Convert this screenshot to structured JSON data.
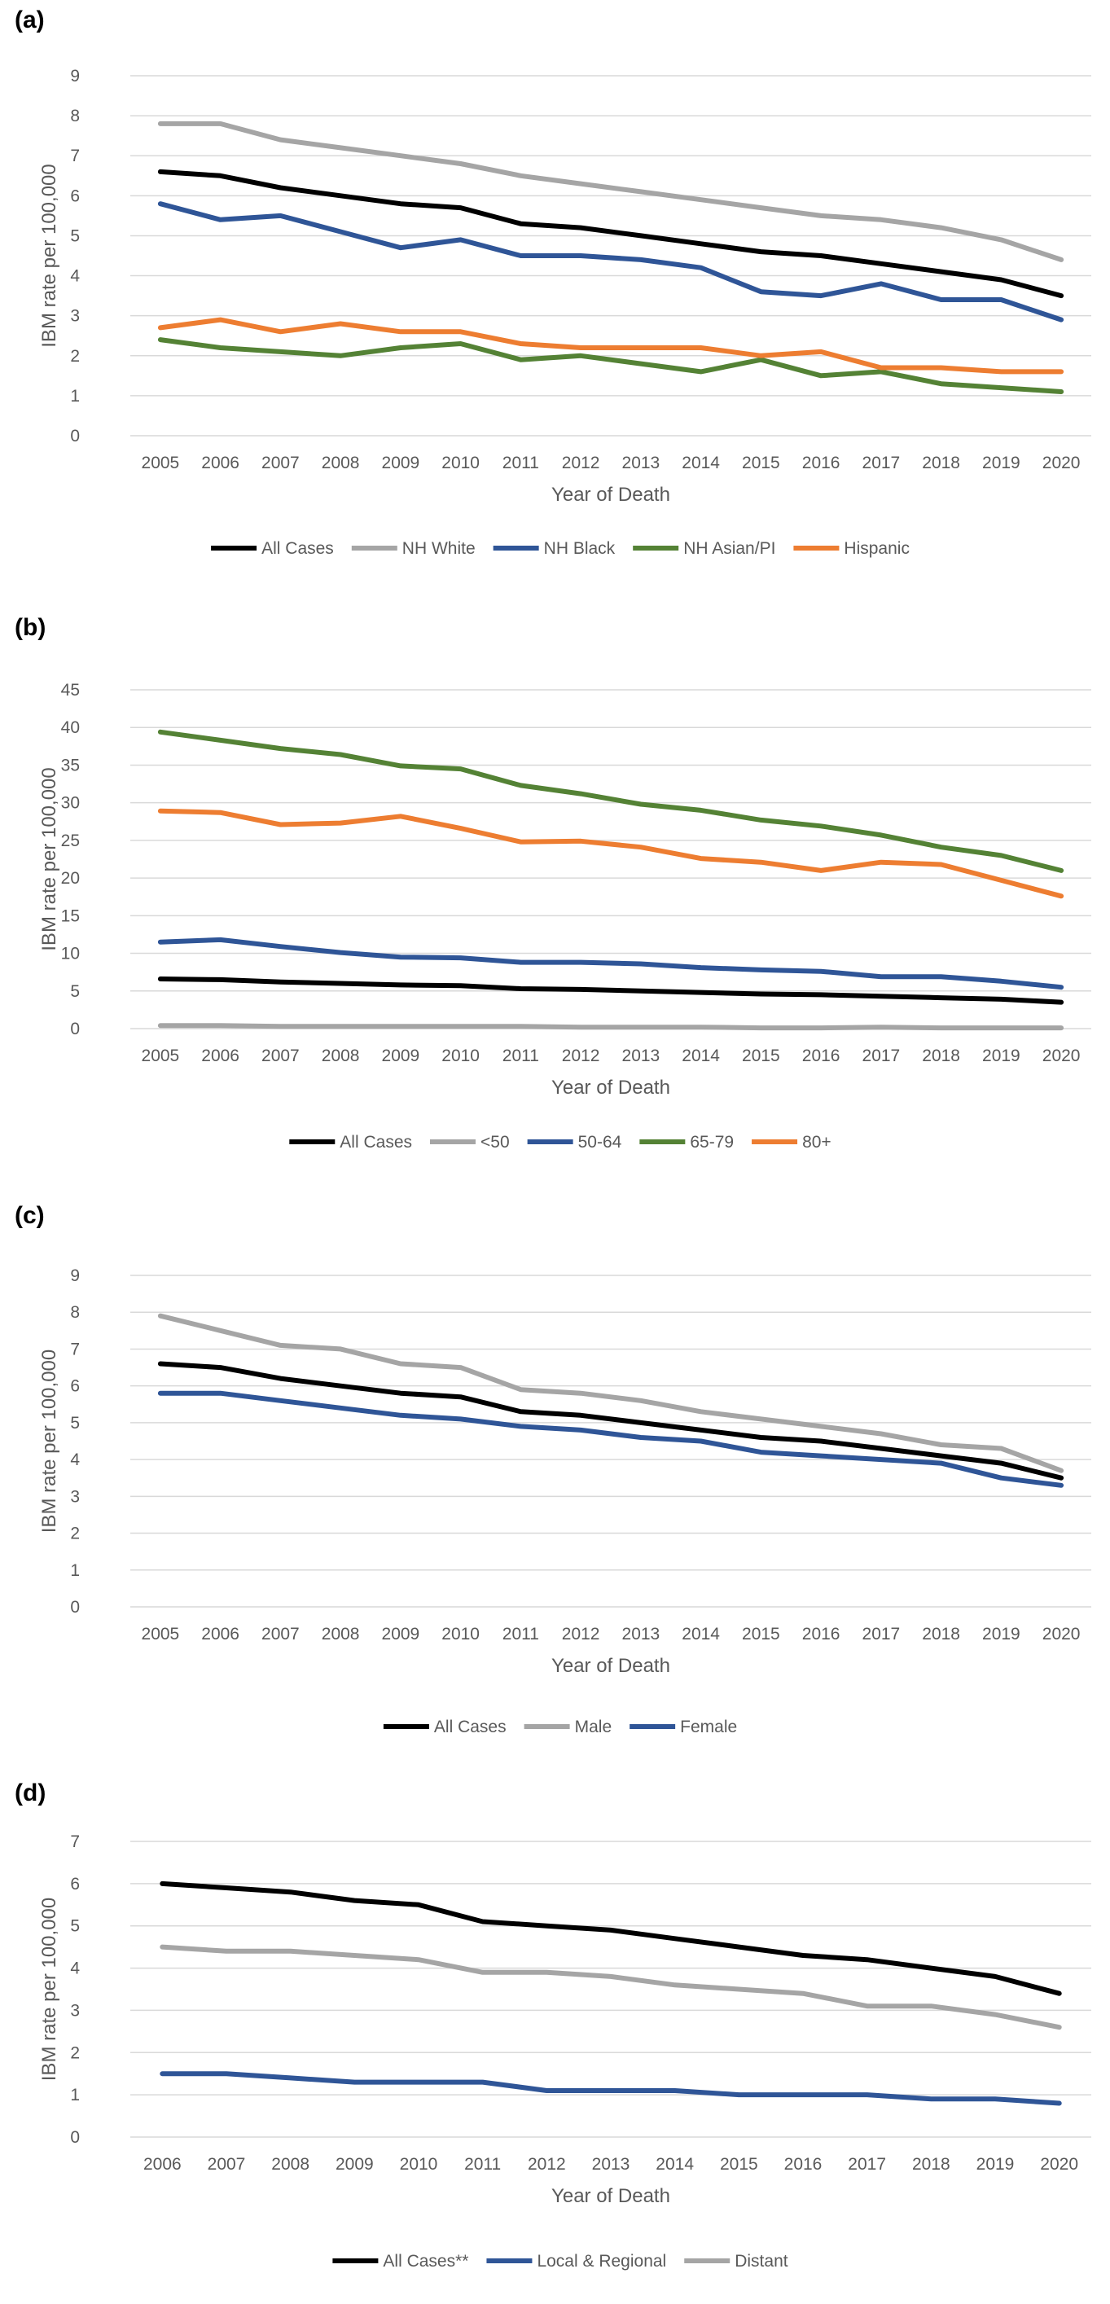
{
  "chart_data": [
    {
      "panel_label": "(a)",
      "type": "line",
      "x": [
        "2005",
        "2006",
        "2007",
        "2008",
        "2009",
        "2010",
        "2011",
        "2012",
        "2013",
        "2014",
        "2015",
        "2016",
        "2017",
        "2018",
        "2019",
        "2020"
      ],
      "xlabel": "Year of Death",
      "ylabel": "IBM rate per 100,000",
      "ylim": [
        0,
        9
      ],
      "yticks": [
        0,
        1,
        2,
        3,
        4,
        5,
        6,
        7,
        8,
        9
      ],
      "grid": true,
      "legend": "bottom",
      "series": [
        {
          "name": "All Cases",
          "color": "#000000",
          "values": [
            6.6,
            6.5,
            6.2,
            6.0,
            5.8,
            5.7,
            5.3,
            5.2,
            5.0,
            4.8,
            4.6,
            4.5,
            4.3,
            4.1,
            3.9,
            3.5
          ]
        },
        {
          "name": "NH White",
          "color": "#a5a5a5",
          "values": [
            7.8,
            7.8,
            7.4,
            7.2,
            7.0,
            6.8,
            6.5,
            6.3,
            6.1,
            5.9,
            5.7,
            5.5,
            5.4,
            5.2,
            4.9,
            4.4
          ]
        },
        {
          "name": "NH Black",
          "color": "#2f5597",
          "values": [
            5.8,
            5.4,
            5.5,
            5.1,
            4.7,
            4.9,
            4.5,
            4.5,
            4.4,
            4.2,
            3.6,
            3.5,
            3.8,
            3.4,
            3.4,
            2.9
          ]
        },
        {
          "name": "NH Asian/PI",
          "color": "#548235",
          "values": [
            2.4,
            2.2,
            2.1,
            2.0,
            2.2,
            2.3,
            1.9,
            2.0,
            1.8,
            1.6,
            1.9,
            1.5,
            1.6,
            1.3,
            1.2,
            1.1
          ]
        },
        {
          "name": "Hispanic",
          "color": "#ed7d31",
          "values": [
            2.7,
            2.9,
            2.6,
            2.8,
            2.6,
            2.6,
            2.3,
            2.2,
            2.2,
            2.2,
            2.0,
            2.1,
            1.7,
            1.7,
            1.6,
            1.6
          ]
        }
      ]
    },
    {
      "panel_label": "(b)",
      "type": "line",
      "x": [
        "2005",
        "2006",
        "2007",
        "2008",
        "2009",
        "2010",
        "2011",
        "2012",
        "2013",
        "2014",
        "2015",
        "2016",
        "2017",
        "2018",
        "2019",
        "2020"
      ],
      "xlabel": "Year of Death",
      "ylabel": "IBM rate per 100,000",
      "ylim": [
        0,
        45
      ],
      "yticks": [
        0,
        5,
        10,
        15,
        20,
        25,
        30,
        35,
        40,
        45
      ],
      "grid": true,
      "legend": "bottom",
      "series": [
        {
          "name": "All Cases",
          "color": "#000000",
          "values": [
            6.6,
            6.5,
            6.2,
            6.0,
            5.8,
            5.7,
            5.3,
            5.2,
            5.0,
            4.8,
            4.6,
            4.5,
            4.3,
            4.1,
            3.9,
            3.5
          ]
        },
        {
          "name": "<50",
          "color": "#a5a5a5",
          "values": [
            0.4,
            0.4,
            0.3,
            0.3,
            0.3,
            0.3,
            0.3,
            0.2,
            0.2,
            0.2,
            0.1,
            0.1,
            0.2,
            0.1,
            0.1,
            0.1
          ]
        },
        {
          "name": "50-64",
          "color": "#2f5597",
          "values": [
            11.5,
            11.8,
            10.9,
            10.1,
            9.5,
            9.4,
            8.8,
            8.8,
            8.6,
            8.1,
            7.8,
            7.6,
            6.9,
            6.9,
            6.3,
            5.5
          ]
        },
        {
          "name": "65-79",
          "color": "#548235",
          "values": [
            39.4,
            38.3,
            37.2,
            36.4,
            34.9,
            34.5,
            32.3,
            31.2,
            29.8,
            29.0,
            27.7,
            26.9,
            25.7,
            24.1,
            23.0,
            21.0
          ]
        },
        {
          "name": "80+",
          "color": "#ed7d31",
          "values": [
            28.9,
            28.7,
            27.1,
            27.3,
            28.2,
            26.6,
            24.8,
            24.9,
            24.1,
            22.6,
            22.1,
            21.0,
            22.1,
            21.8,
            19.7,
            17.6
          ]
        }
      ]
    },
    {
      "panel_label": "(c)",
      "type": "line",
      "x": [
        "2005",
        "2006",
        "2007",
        "2008",
        "2009",
        "2010",
        "2011",
        "2012",
        "2013",
        "2014",
        "2015",
        "2016",
        "2017",
        "2018",
        "2019",
        "2020"
      ],
      "xlabel": "Year of Death",
      "ylabel": "IBM rate per 100,000",
      "ylim": [
        0,
        9
      ],
      "yticks": [
        0,
        1,
        2,
        3,
        4,
        5,
        6,
        7,
        8,
        9
      ],
      "grid": true,
      "legend": "bottom",
      "series": [
        {
          "name": "All Cases",
          "color": "#000000",
          "values": [
            6.6,
            6.5,
            6.2,
            6.0,
            5.8,
            5.7,
            5.3,
            5.2,
            5.0,
            4.8,
            4.6,
            4.5,
            4.3,
            4.1,
            3.9,
            3.5
          ]
        },
        {
          "name": "Male",
          "color": "#a5a5a5",
          "values": [
            7.9,
            7.5,
            7.1,
            7.0,
            6.6,
            6.5,
            5.9,
            5.8,
            5.6,
            5.3,
            5.1,
            4.9,
            4.7,
            4.4,
            4.3,
            3.7
          ]
        },
        {
          "name": "Female",
          "color": "#2f5597",
          "values": [
            5.8,
            5.8,
            5.6,
            5.4,
            5.2,
            5.1,
            4.9,
            4.8,
            4.6,
            4.5,
            4.2,
            4.1,
            4.0,
            3.9,
            3.5,
            3.3
          ]
        }
      ]
    },
    {
      "panel_label": "(d)",
      "type": "line",
      "x": [
        "2006",
        "2007",
        "2008",
        "2009",
        "2010",
        "2011",
        "2012",
        "2013",
        "2014",
        "2015",
        "2016",
        "2017",
        "2018",
        "2019",
        "2020"
      ],
      "xlabel": "Year of Death",
      "ylabel": "IBM rate per 100,000",
      "ylim": [
        0,
        7
      ],
      "yticks": [
        0,
        1,
        2,
        3,
        4,
        5,
        6,
        7
      ],
      "grid": true,
      "legend": "bottom",
      "series": [
        {
          "name": "All Cases**",
          "color": "#000000",
          "values": [
            6.0,
            5.9,
            5.8,
            5.6,
            5.5,
            5.1,
            5.0,
            4.9,
            4.7,
            4.5,
            4.3,
            4.2,
            4.0,
            3.8,
            3.4
          ]
        },
        {
          "name": "Local & Regional",
          "color": "#2f5597",
          "values": [
            1.5,
            1.5,
            1.4,
            1.3,
            1.3,
            1.3,
            1.1,
            1.1,
            1.1,
            1.0,
            1.0,
            1.0,
            0.9,
            0.9,
            0.8
          ]
        },
        {
          "name": "Distant",
          "color": "#a5a5a5",
          "values": [
            4.5,
            4.4,
            4.4,
            4.3,
            4.2,
            3.9,
            3.9,
            3.8,
            3.6,
            3.5,
            3.4,
            3.1,
            3.1,
            2.9,
            2.6
          ]
        }
      ]
    }
  ]
}
